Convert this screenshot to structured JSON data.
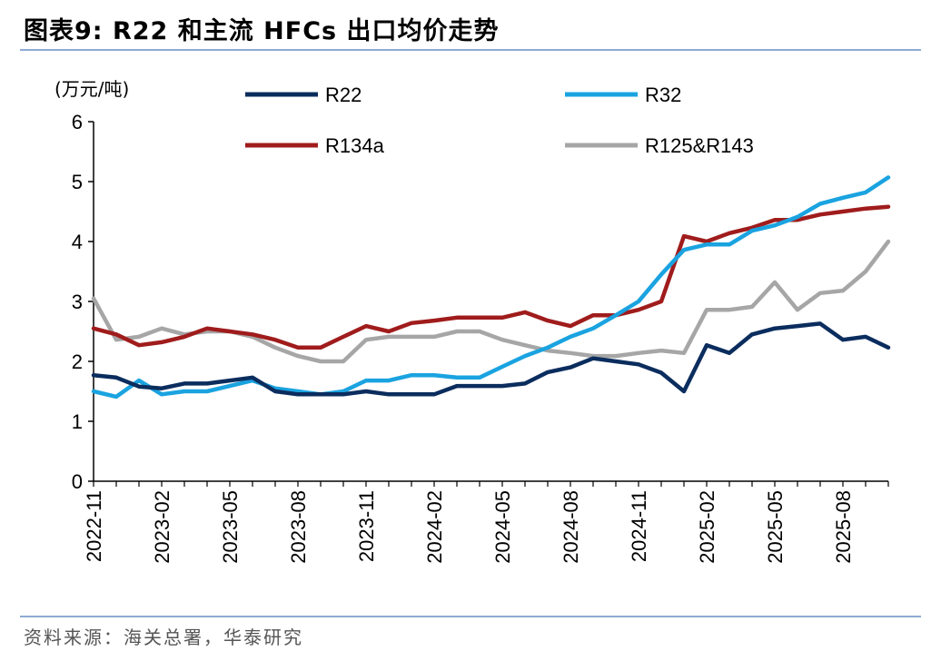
{
  "title": "图表9:   R22 和主流 HFCs 出口均价走势",
  "source": "资料来源：海关总署，华泰研究",
  "chart_data": {
    "type": "line",
    "ylabel": "(万元/吨)",
    "ylim": [
      0,
      6
    ],
    "yticks": [
      0,
      1,
      2,
      3,
      4,
      5,
      6
    ],
    "xlabels": [
      "2022-11",
      "2023-02",
      "2023-05",
      "2023-08",
      "2023-11",
      "2024-02",
      "2024-05",
      "2024-08",
      "2024-11",
      "2025-02",
      "2025-05",
      "2025-08"
    ],
    "x": [
      "2022-11",
      "2022-12",
      "2023-01",
      "2023-02",
      "2023-03",
      "2023-04",
      "2023-05",
      "2023-06",
      "2023-07",
      "2023-08",
      "2023-09",
      "2023-10",
      "2023-11",
      "2023-12",
      "2024-01",
      "2024-02",
      "2024-03",
      "2024-04",
      "2024-05",
      "2024-06",
      "2024-07",
      "2024-08",
      "2024-09",
      "2024-10",
      "2024-11",
      "2024-12",
      "2025-01",
      "2025-02",
      "2025-03",
      "2025-04",
      "2025-05",
      "2025-06",
      "2025-07",
      "2025-08",
      "2025-09",
      "2025-10"
    ],
    "grid": false,
    "legend_position": "top",
    "series": [
      {
        "name": "R22",
        "color": "#0b2d5e",
        "values": [
          1.77,
          1.73,
          1.58,
          1.55,
          1.63,
          1.63,
          1.68,
          1.73,
          1.5,
          1.45,
          1.45,
          1.45,
          1.5,
          1.45,
          1.45,
          1.45,
          1.59,
          1.59,
          1.59,
          1.63,
          1.82,
          1.9,
          2.05,
          2.0,
          1.95,
          1.81,
          1.5,
          2.27,
          2.14,
          2.45,
          2.55,
          2.59,
          2.63,
          2.36,
          2.41,
          2.23
        ]
      },
      {
        "name": "R32",
        "color": "#1aa3e0",
        "values": [
          1.5,
          1.41,
          1.68,
          1.45,
          1.5,
          1.5,
          1.59,
          1.68,
          1.55,
          1.5,
          1.45,
          1.5,
          1.68,
          1.68,
          1.77,
          1.77,
          1.73,
          1.73,
          1.91,
          2.09,
          2.23,
          2.41,
          2.55,
          2.77,
          3.0,
          3.45,
          3.86,
          3.95,
          3.95,
          4.18,
          4.27,
          4.41,
          4.63,
          4.73,
          4.82,
          5.07
        ]
      },
      {
        "name": "R134a",
        "color": "#a01c1c",
        "values": [
          2.55,
          2.45,
          2.27,
          2.32,
          2.41,
          2.55,
          2.5,
          2.45,
          2.36,
          2.23,
          2.23,
          2.41,
          2.59,
          2.5,
          2.64,
          2.68,
          2.73,
          2.73,
          2.73,
          2.82,
          2.68,
          2.59,
          2.77,
          2.77,
          2.86,
          3.0,
          4.09,
          4.0,
          4.14,
          4.23,
          4.36,
          4.36,
          4.45,
          4.5,
          4.55,
          4.58
        ]
      },
      {
        "name": "R125&R143",
        "color": "#a6a6a6",
        "values": [
          3.05,
          2.36,
          2.41,
          2.55,
          2.45,
          2.5,
          2.5,
          2.41,
          2.23,
          2.09,
          2.0,
          2.0,
          2.36,
          2.41,
          2.41,
          2.41,
          2.5,
          2.5,
          2.36,
          2.27,
          2.18,
          2.14,
          2.09,
          2.09,
          2.14,
          2.18,
          2.14,
          2.86,
          2.86,
          2.91,
          3.32,
          2.86,
          3.14,
          3.18,
          3.5,
          4.0
        ]
      }
    ]
  }
}
